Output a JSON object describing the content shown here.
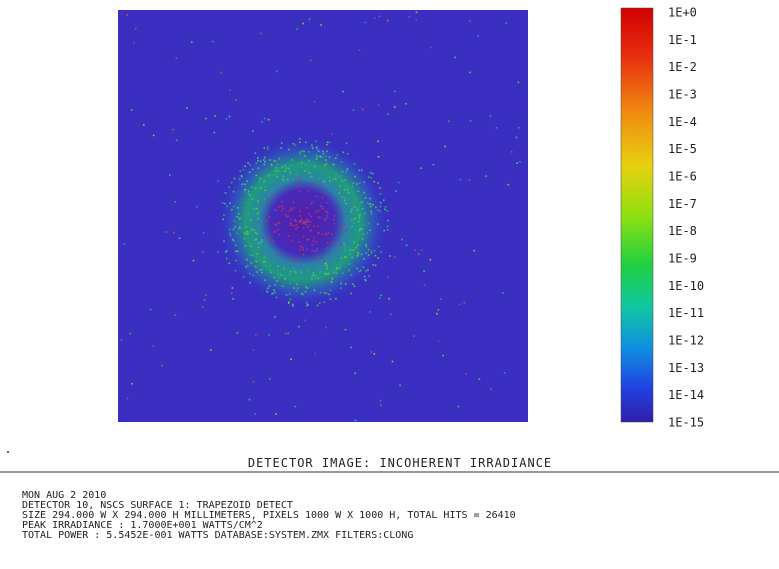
{
  "colorbar": {
    "labels": [
      "1E+0",
      "1E-1",
      "1E-2",
      "1E-3",
      "1E-4",
      "1E-5",
      "1E-6",
      "1E-7",
      "1E-8",
      "1E-9",
      "1E-10",
      "1E-11",
      "1E-12",
      "1E-13",
      "1E-14",
      "1E-15"
    ]
  },
  "plot": {
    "title": "DETECTOR IMAGE: INCOHERENT IRRADIANCE"
  },
  "info": {
    "lines": [
      "MON AUG 2 2010",
      "DETECTOR 10, NSCS SURFACE 1: TRAPEZOID DETECT",
      "SIZE 294.000 W X 294.000 H MILLIMETERS, PIXELS 1000 W X 1000 H, TOTAL HITS = 26410",
      "PEAK IRRADIANCE : 1.7000E+001 WATTS/CM^2",
      "TOTAL POWER     : 5.5452E-001 WATTS DATABASE:SYSTEM.ZMX FILTERS:CLONG"
    ]
  }
}
